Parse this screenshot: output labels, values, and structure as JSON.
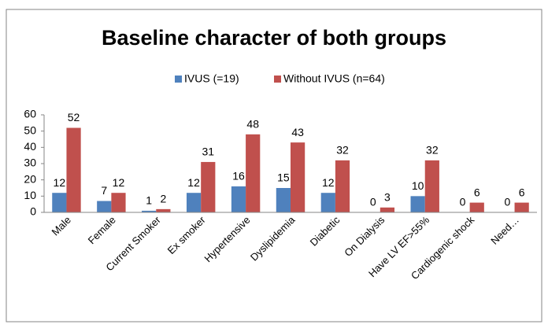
{
  "chart_data": {
    "type": "bar",
    "title": "Baseline character of both groups",
    "categories": [
      "Male",
      "Female",
      "Current Smoker",
      "Ex smoker",
      "Hypertensive",
      "Dyslipidemia",
      "Diabetic",
      "On Dialysis",
      "Have LV EF>55%",
      "Cardiogenic shock",
      "Need…"
    ],
    "series": [
      {
        "name": "IVUS (=19)",
        "color": "#4f81bd",
        "values": [
          12,
          7,
          1,
          12,
          16,
          15,
          12,
          0,
          10,
          0,
          0
        ]
      },
      {
        "name": "Without IVUS (n=64)",
        "color": "#c0504d",
        "values": [
          52,
          12,
          2,
          31,
          48,
          43,
          32,
          3,
          32,
          6,
          6
        ]
      }
    ],
    "ylim": [
      0,
      60
    ],
    "yticks": [
      0,
      10,
      20,
      30,
      40,
      50,
      60
    ],
    "grid": false,
    "legend": "top"
  }
}
